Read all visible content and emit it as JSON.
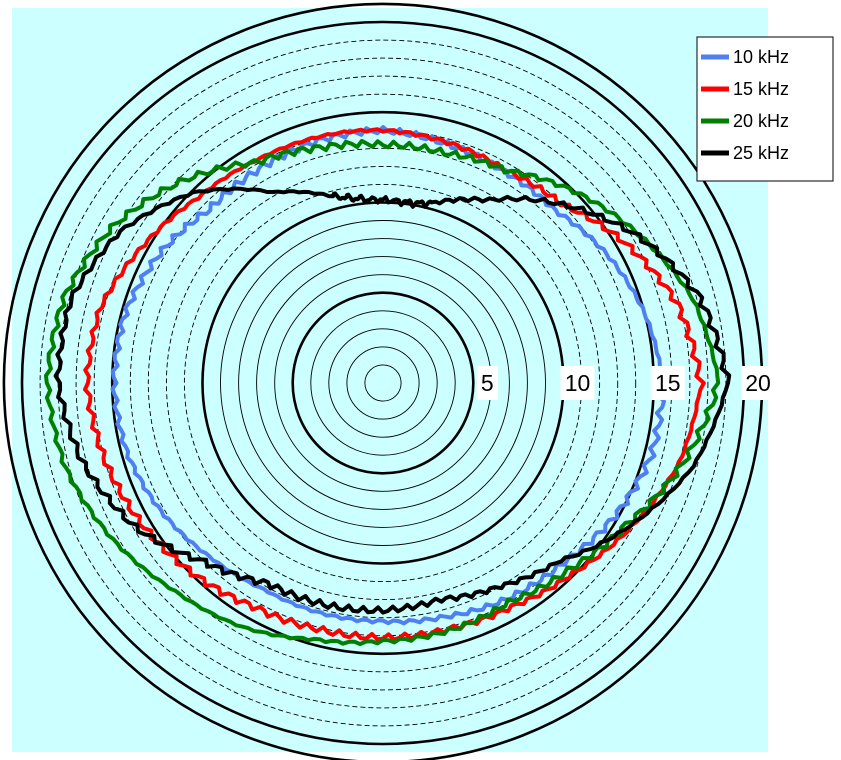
{
  "chart_data": {
    "type": "polar-line",
    "radial_axis": {
      "major_rings": [
        5,
        10,
        15,
        20
      ],
      "tick_labels": [
        "5",
        "10",
        "15",
        "20"
      ],
      "minor_step_inner": 1,
      "minor_step_outer": 1,
      "rmax": 21,
      "grid": true
    },
    "legend": {
      "placement": "top-right",
      "entries": [
        "10 kHz",
        "15 kHz",
        "20 kHz",
        "25 kHz"
      ]
    },
    "colors": {
      "plot_background": "#ccffff",
      "page_background": "#ffffff"
    },
    "series": [
      {
        "name": "10 kHz",
        "color": "#4f7ff0",
        "angles_deg": [
          0,
          15,
          30,
          45,
          60,
          75,
          90,
          105,
          120,
          135,
          150,
          165,
          180,
          195,
          210,
          225,
          240,
          255,
          270,
          285,
          300,
          315,
          330,
          345
        ],
        "radii": [
          15.5,
          15.0,
          14.3,
          13.5,
          13.5,
          13.7,
          14.0,
          13.9,
          13.7,
          13.6,
          14.3,
          14.8,
          14.9,
          14.7,
          14.2,
          13.6,
          13.2,
          13.2,
          13.2,
          13.4,
          13.8,
          14.1,
          14.8,
          15.4
        ]
      },
      {
        "name": "15 kHz",
        "color": "#ff0000",
        "angles_deg": [
          0,
          15,
          30,
          45,
          60,
          75,
          90,
          105,
          120,
          135,
          150,
          165,
          180,
          195,
          210,
          225,
          240,
          255,
          270,
          285,
          300,
          315,
          330,
          345
        ],
        "radii": [
          17.6,
          16.9,
          15.5,
          14.0,
          13.6,
          13.8,
          14.0,
          14.1,
          14.2,
          14.5,
          15.3,
          16.2,
          16.4,
          16.0,
          15.5,
          14.9,
          14.3,
          14.1,
          14.1,
          14.1,
          14.3,
          14.9,
          15.9,
          17.0
        ]
      },
      {
        "name": "20 kHz",
        "color": "#008000",
        "angles_deg": [
          0,
          15,
          30,
          45,
          60,
          75,
          90,
          105,
          120,
          135,
          150,
          165,
          180,
          195,
          210,
          225,
          240,
          255,
          270,
          285,
          300,
          315,
          330,
          345
        ],
        "radii": [
          18.6,
          17.8,
          16.4,
          15.0,
          13.6,
          13.2,
          13.2,
          13.5,
          14.1,
          15.8,
          17.3,
          18.3,
          18.6,
          18.2,
          17.3,
          16.3,
          15.6,
          14.7,
          14.3,
          14.2,
          14.0,
          14.6,
          15.6,
          17.2
        ]
      },
      {
        "name": "25 kHz",
        "color": "#000000",
        "angles_deg": [
          0,
          15,
          30,
          45,
          60,
          75,
          80,
          85,
          95,
          100,
          105,
          120,
          135,
          150,
          165,
          180,
          195,
          210,
          225,
          240,
          255,
          270,
          285,
          300,
          315,
          330,
          345
        ],
        "radii": [
          19.1,
          18.2,
          16.3,
          14.0,
          11.7,
          10.3,
          10.1,
          10.1,
          10.2,
          10.4,
          10.7,
          12.2,
          14.9,
          16.8,
          17.9,
          18.0,
          17.2,
          15.9,
          14.0,
          12.8,
          12.7,
          12.6,
          12.4,
          13.0,
          13.9,
          15.8,
          17.8
        ]
      }
    ]
  }
}
